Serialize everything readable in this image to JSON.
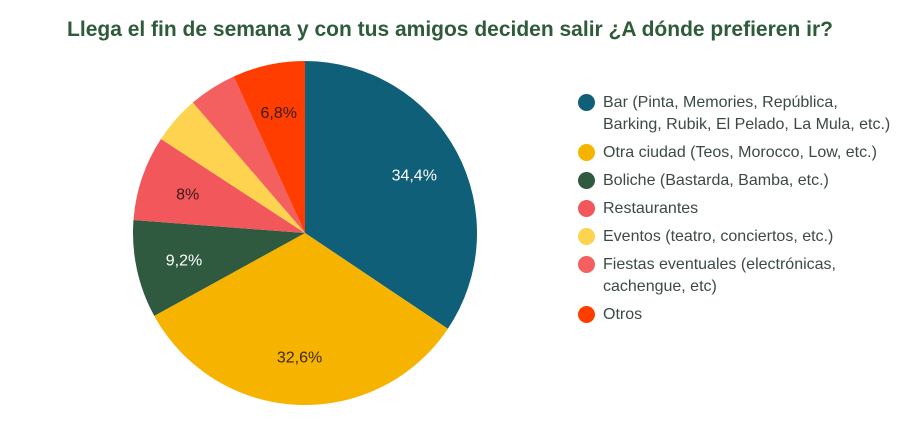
{
  "chart_data": {
    "type": "pie",
    "title": "Llega el fin de semana y con tus amigos deciden salir ¿A dónde prefieren ir?",
    "legend_position": "right",
    "slices": [
      {
        "label": "Bar (Pinta, Memories, República, Barking, Rubik, El Pelado, La Mula, etc.)",
        "value": 34.4,
        "data_label": "34,4%",
        "color": "#0f5f78",
        "label_color": "#ffffff"
      },
      {
        "label": "Otra ciudad (Teos, Morocco, Low, etc.)",
        "value": 32.6,
        "data_label": "32,6%",
        "color": "#f6b400",
        "label_color": "#3a2a10"
      },
      {
        "label": "Boliche (Bastarda, Bamba, etc.)",
        "value": 9.2,
        "data_label": "9,2%",
        "color": "#2f5a3f",
        "label_color": "#ffffff"
      },
      {
        "label": "Restaurantes",
        "value": 8,
        "data_label": "8%",
        "color": "#f2585b",
        "label_color": "#3a1a1a"
      },
      {
        "label": "Eventos (teatro, conciertos, etc.)",
        "value": 4.5,
        "data_label": "",
        "color": "#fdd34f",
        "label_color": "#333"
      },
      {
        "label": "Fiestas eventuales (electrónicas, cachengue, etc)",
        "value": 4.5,
        "data_label": "",
        "color": "#f46060",
        "label_color": "#333"
      },
      {
        "label": "Otros",
        "value": 6.8,
        "data_label": "6,8%",
        "color": "#ff3d00",
        "label_color": "#3a1a10"
      }
    ]
  }
}
